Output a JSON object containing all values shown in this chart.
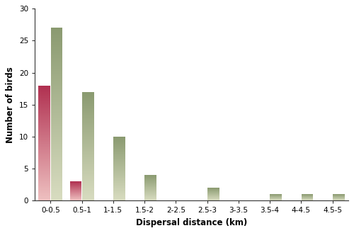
{
  "categories": [
    "0-0.5",
    "0.5-1",
    "1-1.5",
    "1.5-2",
    "2-2.5",
    "2.5-3",
    "3-3.5",
    "3.5-4",
    "4-4.5",
    "4.5-5"
  ],
  "female_values": [
    18,
    3,
    0,
    0,
    0,
    0,
    0,
    0,
    0,
    0
  ],
  "male_values": [
    27,
    17,
    10,
    4,
    0,
    2,
    0,
    1,
    1,
    1
  ],
  "female_color_top": "#b03050",
  "female_color_bottom": "#eec0c0",
  "male_color_top": "#8a9a70",
  "male_color_bottom": "#d8dcc0",
  "bar_width": 0.38,
  "ylim": [
    0,
    30
  ],
  "yticks": [
    0,
    5,
    10,
    15,
    20,
    25,
    30
  ],
  "ylabel": "Number of birds",
  "xlabel": "Dispersal distance (km)",
  "background_color": "#ffffff",
  "title": ""
}
